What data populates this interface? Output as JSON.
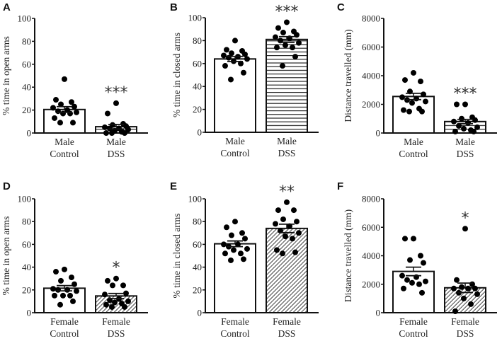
{
  "chart_data": [
    {
      "panel": "A",
      "type": "bar",
      "ylabel": "% time in open arms",
      "ylim": [
        0,
        100
      ],
      "yticks": [
        0,
        20,
        40,
        60,
        80,
        100
      ],
      "categories": [
        [
          "Male",
          "Control"
        ],
        [
          "Male",
          "DSS"
        ]
      ],
      "patterns": [
        "none",
        "hlines"
      ],
      "significance": [
        "",
        "***"
      ],
      "means": [
        20.5,
        5.5
      ],
      "sem": [
        2.5,
        2.0
      ],
      "points": [
        [
          47,
          29,
          27,
          25,
          23,
          22,
          20,
          19,
          18,
          17,
          17,
          13,
          9,
          9
        ],
        [
          26,
          17,
          8,
          7,
          6,
          5,
          4,
          4,
          3,
          2,
          1,
          0,
          0,
          0
        ]
      ]
    },
    {
      "panel": "B",
      "type": "bar",
      "ylabel": "% time in closed arms",
      "ylim": [
        0,
        100
      ],
      "yticks": [
        0,
        20,
        40,
        60,
        80,
        100
      ],
      "categories": [
        [
          "Male",
          "Control"
        ],
        [
          "Male",
          "DSS"
        ]
      ],
      "patterns": [
        "none",
        "hlines"
      ],
      "significance": [
        "",
        "***"
      ],
      "means": [
        64,
        81
      ],
      "sem": [
        2.2,
        2.5
      ],
      "points": [
        [
          80,
          72,
          71,
          69,
          68,
          67,
          66,
          65,
          64,
          62,
          60,
          58,
          52,
          46
        ],
        [
          96,
          91,
          88,
          87,
          85,
          83,
          82,
          80,
          78,
          76,
          74,
          74,
          66,
          58
        ]
      ]
    },
    {
      "panel": "C",
      "type": "bar",
      "ylabel": "Distance travelled (mm)",
      "ylim": [
        0,
        8000
      ],
      "yticks": [
        0,
        2000,
        4000,
        6000,
        8000
      ],
      "categories": [
        [
          "Male",
          "Control"
        ],
        [
          "Male",
          "DSS"
        ]
      ],
      "patterns": [
        "none",
        "hlines"
      ],
      "significance": [
        "",
        "***"
      ],
      "means": [
        2550,
        800
      ],
      "sem": [
        220,
        150
      ],
      "points": [
        [
          4200,
          3700,
          3600,
          2900,
          2700,
          2500,
          2400,
          2300,
          2200,
          2100,
          1700,
          1600,
          1500,
          1500
        ],
        [
          2000,
          2000,
          1100,
          1000,
          900,
          800,
          700,
          500,
          400,
          300,
          200,
          100,
          100
        ]
      ]
    },
    {
      "panel": "D",
      "type": "bar",
      "ylabel": "% time in open arms",
      "ylim": [
        0,
        100
      ],
      "yticks": [
        0,
        20,
        40,
        60,
        80,
        100
      ],
      "categories": [
        [
          "Female",
          "Control"
        ],
        [
          "Female",
          "DSS"
        ]
      ],
      "patterns": [
        "none",
        "diag"
      ],
      "significance": [
        "",
        "*"
      ],
      "means": [
        21.5,
        14.7
      ],
      "sem": [
        2.3,
        2.2
      ],
      "points": [
        [
          38,
          36,
          31,
          28,
          25,
          21,
          20,
          20,
          19,
          15,
          15,
          15,
          10,
          7
        ],
        [
          30,
          28,
          24,
          24,
          17,
          16,
          12,
          11,
          10,
          9,
          8,
          7,
          5,
          5
        ]
      ]
    },
    {
      "panel": "E",
      "type": "bar",
      "ylabel": "% time in closed arms",
      "ylim": [
        0,
        100
      ],
      "yticks": [
        0,
        20,
        40,
        60,
        80,
        100
      ],
      "categories": [
        [
          "Female",
          "Control"
        ],
        [
          "Female",
          "DSS"
        ]
      ],
      "patterns": [
        "none",
        "diag"
      ],
      "significance": [
        "",
        "**"
      ],
      "means": [
        60.5,
        74
      ],
      "sem": [
        2.5,
        3.7
      ],
      "points": [
        [
          80,
          75,
          70,
          68,
          65,
          60,
          60,
          58,
          56,
          55,
          52,
          52,
          47,
          46
        ],
        [
          97,
          90,
          90,
          82,
          80,
          78,
          76,
          72,
          70,
          67,
          65,
          55,
          53,
          52
        ]
      ]
    },
    {
      "panel": "F",
      "type": "bar",
      "ylabel": "Distance travelled (mm)",
      "ylim": [
        0,
        8000
      ],
      "yticks": [
        0,
        2000,
        4000,
        6000,
        8000
      ],
      "categories": [
        [
          "Female",
          "Control"
        ],
        [
          "Female",
          "DSS"
        ]
      ],
      "patterns": [
        "none",
        "diag"
      ],
      "significance": [
        "",
        "*"
      ],
      "means": [
        2900,
        1750
      ],
      "sem": [
        300,
        330
      ],
      "points": [
        [
          5200,
          5200,
          4000,
          3700,
          3500,
          2600,
          2500,
          2300,
          2200,
          2100,
          2000,
          1700,
          1400
        ],
        [
          5900,
          2300,
          2000,
          1800,
          1700,
          1700,
          1700,
          1400,
          1300,
          1000,
          600,
          100
        ]
      ]
    }
  ]
}
